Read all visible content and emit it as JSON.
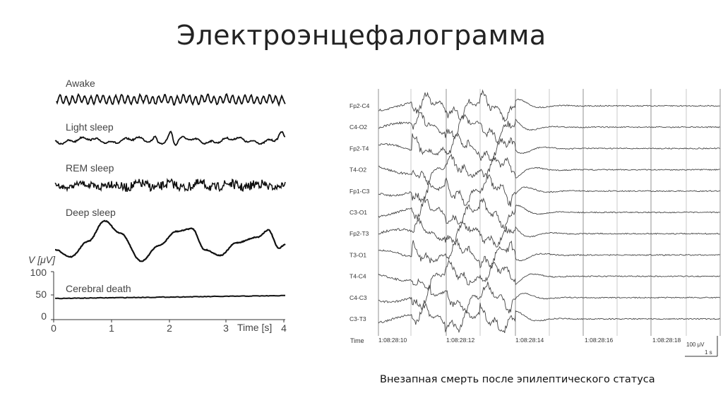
{
  "slide": {
    "title": "Электроэнцефалограмма",
    "caption": "Внезапная смерть после эпилептического статуса"
  },
  "left_figure": {
    "traces": [
      {
        "label": "Awake",
        "style": "fast-alpha"
      },
      {
        "label": "Light sleep",
        "style": "spindles"
      },
      {
        "label": "REM sleep",
        "style": "mixed-fast"
      },
      {
        "label": "Deep sleep",
        "style": "slow-delta"
      },
      {
        "label": "Cerebral death",
        "style": "flat"
      }
    ],
    "y_axis_label": "V [μV]",
    "y_ticks": [
      "100",
      "50",
      "0"
    ],
    "x_ticks": [
      "0",
      "1",
      "2",
      "3",
      "4"
    ],
    "x_axis_label": "Time [s]",
    "x_range": [
      0,
      4
    ],
    "y_range": [
      0,
      100
    ]
  },
  "right_figure": {
    "channels": [
      "Fp2-C4",
      "C4-O2",
      "Fp2-T4",
      "T4-O2",
      "Fp1-C3",
      "C3-O1",
      "Fp2-T3",
      "T3-O1",
      "T4-C4",
      "C4-C3",
      "C3-T3"
    ],
    "time_label": "Time",
    "time_marks": [
      "1:08:28:10",
      "1:08:28:12",
      "1:08:28:14",
      "1:08:28:16",
      "1:08:28:18"
    ],
    "scale_amplitude": "100 μV",
    "scale_time": "1 s"
  }
}
